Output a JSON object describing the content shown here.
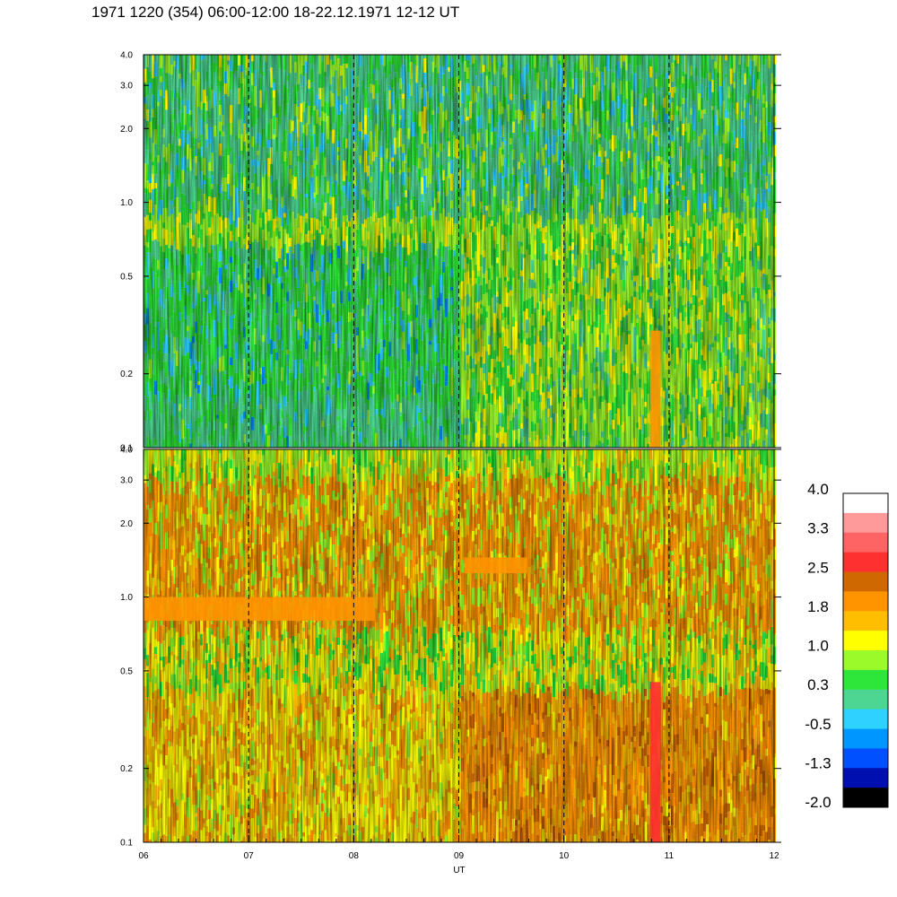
{
  "header": {
    "title": "1971 1220 (354) 06:00-12:00 18-22.12.1971  12-12 UT"
  },
  "chart_data": [
    {
      "type": "heatmap",
      "panel": "top",
      "xlabel": "",
      "ylabel": "",
      "x_range": [
        6,
        12
      ],
      "ylim": [
        0.1,
        4.0
      ],
      "y_scale": "log",
      "y_ticks": [
        0.1,
        0.2,
        0.5,
        1.0,
        2.0,
        3.0,
        4.0
      ],
      "y_tick_labels": [
        "0.1",
        "0.2",
        "0.5",
        "1.0",
        "2.0",
        "3.0",
        "4.0"
      ],
      "hour_markers": [
        7,
        8,
        9,
        10,
        11
      ],
      "dominant_levels": {
        "06-09": {
          "low_freq": "green to cyan",
          "high_freq": "green with yellow streaks"
        },
        "09-12": {
          "low_freq": "yellow-green",
          "high_freq": "green-cyan"
        }
      },
      "features": [
        {
          "hour_start": 10.82,
          "hour_end": 10.92,
          "freq_min": 0.1,
          "freq_max": 0.3,
          "level": "orange"
        }
      ]
    },
    {
      "type": "heatmap",
      "panel": "bottom",
      "xlabel": "UT",
      "ylabel": "",
      "x_range": [
        6,
        12
      ],
      "x_ticks": [
        6,
        7,
        8,
        9,
        10,
        11,
        12
      ],
      "x_tick_labels": [
        "06",
        "07",
        "08",
        "09",
        "10",
        "11",
        "12"
      ],
      "ylim": [
        0.1,
        4.0
      ],
      "y_scale": "log",
      "y_ticks": [
        0.1,
        0.2,
        0.5,
        1.0,
        2.0,
        3.0,
        4.0
      ],
      "y_tick_labels": [
        "0.1",
        "0.2",
        "0.5",
        "1.0",
        "2.0",
        "3.0",
        "4.0"
      ],
      "hour_markers": [
        7,
        8,
        9,
        10,
        11
      ],
      "dominant_levels": {
        "06-09": {
          "low_freq": "yellow-orange",
          "high_freq": "orange-yellow"
        },
        "09-12": {
          "low_freq": "orange",
          "high_freq": "orange-yellow"
        }
      },
      "features": [
        {
          "hour_start": 6.0,
          "hour_end": 8.2,
          "freq_min": 0.8,
          "freq_max": 1.0,
          "level": "orange band"
        },
        {
          "hour_start": 9.05,
          "hour_end": 9.65,
          "freq_min": 1.25,
          "freq_max": 1.45,
          "level": "orange band"
        },
        {
          "hour_start": 10.82,
          "hour_end": 10.92,
          "freq_min": 0.1,
          "freq_max": 0.45,
          "level": "red"
        }
      ]
    }
  ],
  "colorbar": {
    "labels": [
      "4.0",
      "3.3",
      "2.5",
      "1.8",
      "1.0",
      "0.3",
      "-0.5",
      "-1.3",
      "-2.0"
    ],
    "colors_top_to_bottom": [
      "#ffffff",
      "#ff9a9a",
      "#ff6464",
      "#ff3030",
      "#d06800",
      "#ff9400",
      "#ffbe00",
      "#ffff00",
      "#9afa2a",
      "#2ee63a",
      "#4cd691",
      "#2ed2ff",
      "#0096ff",
      "#0050ff",
      "#0010b0",
      "#000000"
    ]
  }
}
